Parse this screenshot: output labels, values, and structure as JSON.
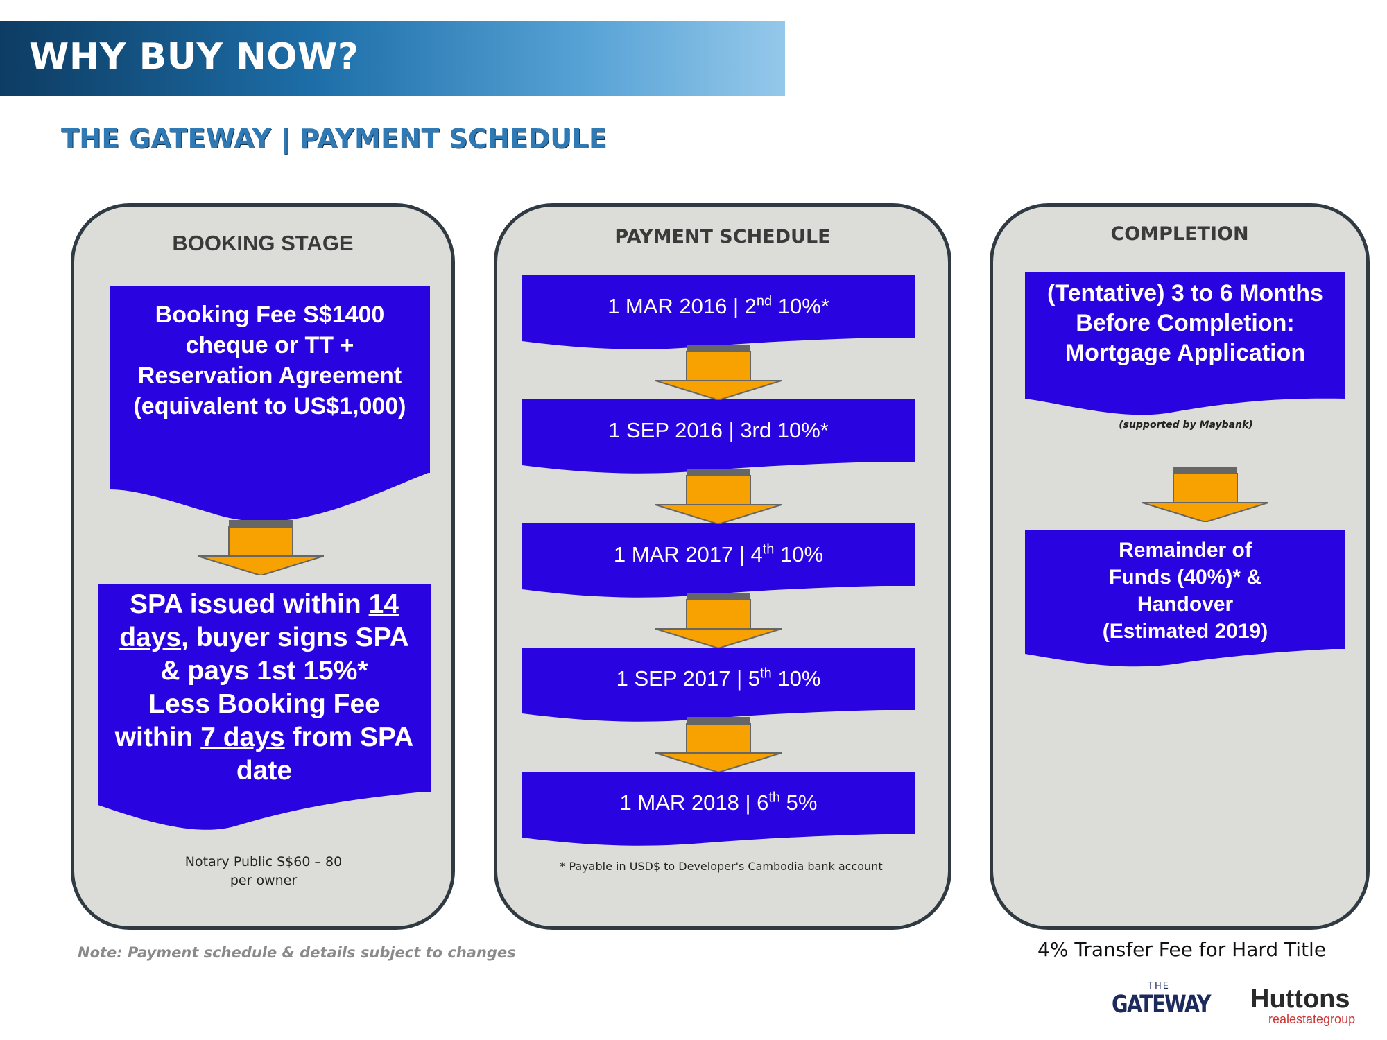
{
  "header": {
    "title": "WHY BUY NOW?"
  },
  "subtitle": "THE GATEWAY | PAYMENT SCHEDULE",
  "booking": {
    "title": "BOOKING STAGE",
    "box1": [
      "Booking Fee S$1400",
      "cheque or TT +",
      "Reservation Agreement",
      "(equivalent to US$1,000)"
    ],
    "box2": {
      "l1a": "SPA issued within ",
      "l1b": "14",
      "l2a": "days",
      "l2b": ", buyer signs SPA",
      "l3": "& pays 1st 15%*",
      "l4": "Less Booking Fee",
      "l5a": "within ",
      "l5b": "7 days",
      "l5c": " from SPA",
      "l6": "date"
    },
    "notary": [
      "Notary Public S$60 – 80",
      "per owner"
    ]
  },
  "schedule": {
    "title": "PAYMENT SCHEDULE",
    "items": [
      {
        "pre": "1 MAR 2016 | 2",
        "sup": "nd",
        "post": " 10%*"
      },
      {
        "pre": "1 SEP 2016 | 3rd 10%*",
        "sup": "",
        "post": ""
      },
      {
        "pre": "1 MAR 2017 | 4",
        "sup": "th",
        "post": " 10%"
      },
      {
        "pre": "1 SEP 2017 | 5",
        "sup": "th",
        "post": " 10%"
      },
      {
        "pre": "1 MAR 2018 | 6",
        "sup": "th",
        "post": " 5%"
      }
    ],
    "footnote": "* Payable in USD$ to Developer's Cambodia bank account"
  },
  "completion": {
    "title": "COMPLETION",
    "box1": [
      "(Tentative) 3 to 6 Months",
      "Before Completion:",
      "Mortgage Application"
    ],
    "support": "(supported by Maybank)",
    "box2": [
      "Remainder of",
      "Funds (40%)* &",
      "Handover",
      "(Estimated 2019)"
    ]
  },
  "note": "Note: Payment schedule & details subject to changes",
  "transfer": "4% Transfer Fee for Hard Title",
  "logos": {
    "gateway_small": "THE",
    "gateway": "GATEWAY",
    "huttons": "Huttons",
    "huttons_sub": "realestategroup"
  },
  "colors": {
    "box": "#2a04e0",
    "arrow": "#f7a200",
    "panel": "#dcdcd8",
    "banner": "#0d3c63"
  }
}
